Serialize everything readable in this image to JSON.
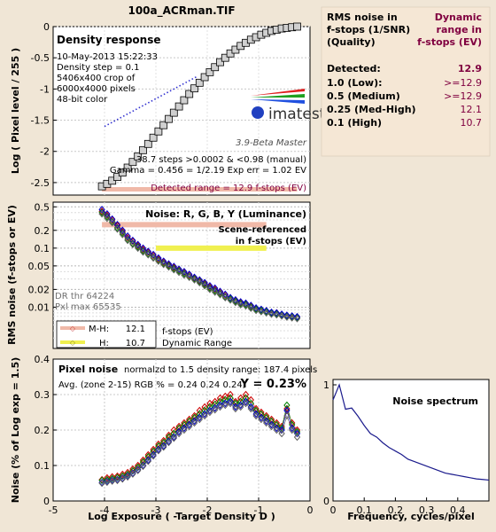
{
  "title": "100a_ACRman.TIF",
  "table": {
    "col1_header": [
      "RMS noise in",
      "f-stops (1/SNR)",
      "(Quality)"
    ],
    "col2_header": [
      "Dynamic",
      "range in",
      "f-stops (EV)"
    ],
    "rows": [
      {
        "label": "Detected:",
        "value": "12.9"
      },
      {
        "label": "1.0   (Low):",
        "value": ">=12.9"
      },
      {
        "label": "0.5   (Medium)",
        "value": ">=12.9"
      },
      {
        "label": "0.25 (Med-High)",
        "value": "12.1"
      },
      {
        "label": "0.1   (High)",
        "value": "10.7"
      }
    ]
  },
  "colors": {
    "background": "#f0e6d6",
    "panel": "#ffffff",
    "title": "#800040",
    "red": "#cc0000",
    "green": "#008000",
    "blue": "#0000cc",
    "gray": "#606060",
    "pink_band": "#f0b9a8",
    "yellow_band": "#f0f050",
    "spectrum_line": "#1a1a8c",
    "blue_dots": "#3030d0"
  },
  "chart_data": [
    {
      "type": "line",
      "name": "density-response",
      "title": "Density response",
      "info": [
        "10-May-2013 15:22:33",
        "Density step = 0.1",
        "5406x400 crop of",
        "6000x4000 pixels",
        "48-bit color"
      ],
      "logo": "imatest",
      "version": "3.9-Beta  Master",
      "notes": [
        "38.7 steps >0.0002 & <0.98 (manual)",
        "Gamma = 0.456 = 1/2.19  Exp err = 1.02 EV"
      ],
      "detected_label": "Detected range = 12.9 f-stops (EV)",
      "ylabel": "Log ( Pixel level / 255 )",
      "xlim": [
        -5,
        0
      ],
      "ylim": [
        -2.7,
        0
      ],
      "yticks": [
        -2.5,
        -2,
        -1.5,
        -1,
        -0.5,
        0
      ],
      "ytick_labels": [
        "-2.5",
        "-2",
        "-1.5",
        "-1",
        "-0.5",
        "0"
      ],
      "x": [
        -4.05,
        -3.95,
        -3.85,
        -3.75,
        -3.65,
        -3.55,
        -3.45,
        -3.35,
        -3.25,
        -3.15,
        -3.05,
        -2.95,
        -2.85,
        -2.75,
        -2.65,
        -2.55,
        -2.45,
        -2.35,
        -2.25,
        -2.15,
        -2.05,
        -1.95,
        -1.85,
        -1.75,
        -1.65,
        -1.55,
        -1.45,
        -1.35,
        -1.25,
        -1.15,
        -1.05,
        -0.95,
        -0.85,
        -0.75,
        -0.65,
        -0.55,
        -0.45,
        -0.35,
        -0.25
      ],
      "y": [
        -2.56,
        -2.52,
        -2.47,
        -2.41,
        -2.34,
        -2.26,
        -2.17,
        -2.08,
        -1.98,
        -1.88,
        -1.78,
        -1.68,
        -1.58,
        -1.48,
        -1.38,
        -1.28,
        -1.18,
        -1.08,
        -0.99,
        -0.9,
        -0.81,
        -0.73,
        -0.65,
        -0.57,
        -0.5,
        -0.43,
        -0.37,
        -0.31,
        -0.26,
        -0.21,
        -0.17,
        -0.13,
        -0.1,
        -0.07,
        -0.05,
        -0.03,
        -0.02,
        -0.01,
        0.0
      ],
      "fit_line": {
        "x": [
          -4.0,
          -2.2
        ],
        "y": [
          -1.6,
          -0.8
        ]
      },
      "detected_range_x": [
        -4.05,
        -0.25
      ]
    },
    {
      "type": "scatter",
      "name": "noise-rgby",
      "title": "Noise: R, G, B, Y (Luminance)",
      "note": [
        "Scene-referenced",
        "in f-stops (EV)"
      ],
      "ylabel": "RMS noise (f-stops or EV)",
      "ylog": true,
      "xlim": [
        -5,
        0
      ],
      "ylim": [
        0.002,
        0.6
      ],
      "ytick_labels": [
        "0.5",
        "0.2",
        "0.1",
        "0.05",
        "0.02",
        "0.01"
      ],
      "ytick_values": [
        0.5,
        0.2,
        0.1,
        0.05,
        0.02,
        0.01
      ],
      "dr_text": [
        "DR thr 64224",
        "Pxl max 65535"
      ],
      "legend": [
        {
          "label": "M-H:",
          "value": "12.1"
        },
        {
          "label": "H:",
          "value": "10.7"
        }
      ],
      "legend_text": [
        "f-stops (EV)",
        "Dynamic Range"
      ],
      "bands": [
        {
          "y": 0.25,
          "x": [
            -4.05,
            -0.85
          ],
          "level": "M-H"
        },
        {
          "y": 0.1,
          "x": [
            -3.0,
            -0.85
          ],
          "level": "H"
        }
      ],
      "x": [
        -4.05,
        -3.95,
        -3.85,
        -3.75,
        -3.65,
        -3.55,
        -3.45,
        -3.35,
        -3.25,
        -3.15,
        -3.05,
        -2.95,
        -2.85,
        -2.75,
        -2.65,
        -2.55,
        -2.45,
        -2.35,
        -2.25,
        -2.15,
        -2.05,
        -1.95,
        -1.85,
        -1.75,
        -1.65,
        -1.55,
        -1.45,
        -1.35,
        -1.25,
        -1.15,
        -1.05,
        -0.95,
        -0.85,
        -0.75,
        -0.65,
        -0.55,
        -0.45,
        -0.35,
        -0.25
      ],
      "series": [
        {
          "name": "R",
          "values": [
            0.42,
            0.36,
            0.3,
            0.24,
            0.19,
            0.15,
            0.13,
            0.11,
            0.095,
            0.085,
            0.075,
            0.065,
            0.058,
            0.052,
            0.047,
            0.043,
            0.039,
            0.035,
            0.031,
            0.028,
            0.025,
            0.022,
            0.02,
            0.018,
            0.016,
            0.014,
            0.013,
            0.012,
            0.0115,
            0.0105,
            0.0095,
            0.009,
            0.0085,
            0.008,
            0.008,
            0.0075,
            0.0072,
            0.007,
            0.0068
          ]
        },
        {
          "name": "G",
          "values": [
            0.4,
            0.34,
            0.28,
            0.22,
            0.18,
            0.14,
            0.12,
            0.105,
            0.09,
            0.08,
            0.07,
            0.062,
            0.055,
            0.05,
            0.045,
            0.041,
            0.037,
            0.033,
            0.03,
            0.027,
            0.024,
            0.021,
            0.019,
            0.017,
            0.015,
            0.0138,
            0.0125,
            0.0115,
            0.011,
            0.01,
            0.0092,
            0.0088,
            0.0084,
            0.0079,
            0.0077,
            0.0074,
            0.007,
            0.0068,
            0.0066
          ]
        },
        {
          "name": "B",
          "values": [
            0.45,
            0.38,
            0.31,
            0.25,
            0.2,
            0.16,
            0.135,
            0.115,
            0.1,
            0.088,
            0.078,
            0.068,
            0.06,
            0.054,
            0.049,
            0.044,
            0.04,
            0.036,
            0.032,
            0.029,
            0.026,
            0.023,
            0.021,
            0.0185,
            0.0165,
            0.0145,
            0.0133,
            0.0123,
            0.0117,
            0.0107,
            0.0097,
            0.0092,
            0.0087,
            0.0082,
            0.008,
            0.0076,
            0.0073,
            0.0071,
            0.0069
          ]
        },
        {
          "name": "Y",
          "values": [
            0.38,
            0.32,
            0.27,
            0.21,
            0.17,
            0.135,
            0.115,
            0.1,
            0.086,
            0.077,
            0.068,
            0.06,
            0.053,
            0.048,
            0.043,
            0.039,
            0.035,
            0.032,
            0.029,
            0.026,
            0.023,
            0.02,
            0.018,
            0.0163,
            0.0145,
            0.0132,
            0.012,
            0.011,
            0.0105,
            0.0096,
            0.0088,
            0.0084,
            0.008,
            0.0076,
            0.0074,
            0.0071,
            0.0068,
            0.0066,
            0.0064
          ]
        }
      ]
    },
    {
      "type": "scatter",
      "name": "pixel-noise",
      "title": "Pixel noise",
      "subtitle": "normalzd to 1.5 density range: 187.4 pixels",
      "avg_text": "Avg. (zone 2-15) RGB % = 0.24  0.24  0.24;",
      "y_text": "Y = 0.23%",
      "ylabel": "Noise (% of Log exp = 1.5)",
      "xlabel": "Log Exposure ( -Target Density D )",
      "xlim": [
        -5,
        0
      ],
      "ylim": [
        0,
        0.4
      ],
      "xticks": [
        -5,
        -4,
        -3,
        -2,
        -1,
        0
      ],
      "xtick_labels": [
        "-5",
        "-4",
        "-3",
        "-2",
        "-1",
        "0"
      ],
      "yticks": [
        0,
        0.1,
        0.2,
        0.3,
        0.4
      ],
      "ytick_labels": [
        "0",
        "0.1",
        "0.2",
        "0.3",
        "0.4"
      ],
      "x": [
        -4.05,
        -3.95,
        -3.85,
        -3.75,
        -3.65,
        -3.55,
        -3.45,
        -3.35,
        -3.25,
        -3.15,
        -3.05,
        -2.95,
        -2.85,
        -2.75,
        -2.65,
        -2.55,
        -2.45,
        -2.35,
        -2.25,
        -2.15,
        -2.05,
        -1.95,
        -1.85,
        -1.75,
        -1.65,
        -1.55,
        -1.45,
        -1.35,
        -1.25,
        -1.15,
        -1.05,
        -0.95,
        -0.85,
        -0.75,
        -0.65,
        -0.55,
        -0.45,
        -0.35,
        -0.25
      ],
      "series": [
        {
          "name": "R",
          "values": [
            0.06,
            0.065,
            0.068,
            0.07,
            0.075,
            0.08,
            0.09,
            0.1,
            0.115,
            0.13,
            0.145,
            0.16,
            0.17,
            0.185,
            0.2,
            0.21,
            0.22,
            0.23,
            0.24,
            0.255,
            0.265,
            0.275,
            0.28,
            0.29,
            0.295,
            0.3,
            0.28,
            0.29,
            0.3,
            0.285,
            0.26,
            0.25,
            0.24,
            0.23,
            0.22,
            0.21,
            0.26,
            0.22,
            0.2
          ]
        },
        {
          "name": "G",
          "values": [
            0.058,
            0.06,
            0.063,
            0.066,
            0.07,
            0.075,
            0.085,
            0.095,
            0.11,
            0.125,
            0.14,
            0.155,
            0.165,
            0.18,
            0.19,
            0.205,
            0.215,
            0.225,
            0.235,
            0.245,
            0.255,
            0.265,
            0.272,
            0.28,
            0.285,
            0.29,
            0.275,
            0.28,
            0.29,
            0.275,
            0.255,
            0.245,
            0.235,
            0.225,
            0.215,
            0.205,
            0.27,
            0.215,
            0.195
          ]
        },
        {
          "name": "B",
          "values": [
            0.052,
            0.055,
            0.058,
            0.06,
            0.064,
            0.07,
            0.078,
            0.088,
            0.1,
            0.115,
            0.13,
            0.145,
            0.155,
            0.168,
            0.18,
            0.195,
            0.205,
            0.215,
            0.225,
            0.235,
            0.245,
            0.255,
            0.262,
            0.27,
            0.275,
            0.28,
            0.265,
            0.27,
            0.28,
            0.265,
            0.245,
            0.235,
            0.225,
            0.215,
            0.205,
            0.2,
            0.255,
            0.205,
            0.19
          ]
        },
        {
          "name": "Y",
          "values": [
            0.05,
            0.053,
            0.056,
            0.058,
            0.062,
            0.068,
            0.076,
            0.086,
            0.098,
            0.112,
            0.127,
            0.142,
            0.152,
            0.165,
            0.177,
            0.19,
            0.2,
            0.21,
            0.22,
            0.23,
            0.24,
            0.25,
            0.257,
            0.265,
            0.27,
            0.275,
            0.26,
            0.265,
            0.275,
            0.26,
            0.24,
            0.23,
            0.22,
            0.21,
            0.2,
            0.19,
            0.24,
            0.2,
            0.18
          ]
        }
      ]
    },
    {
      "type": "line",
      "name": "noise-spectrum",
      "title": "Noise spectrum",
      "xlabel": "Frequency, cycles/pixel",
      "xlim": [
        0,
        0.5
      ],
      "ylim": [
        0,
        1
      ],
      "xticks": [
        0,
        0.1,
        0.2,
        0.3,
        0.4
      ],
      "xtick_labels": [
        "0",
        "0.1",
        "0.2",
        "0.3",
        "0.4"
      ],
      "yticks": [
        0,
        1
      ],
      "ytick_labels": [
        "0",
        "1"
      ],
      "x": [
        0.0,
        0.02,
        0.04,
        0.06,
        0.08,
        0.1,
        0.12,
        0.14,
        0.16,
        0.18,
        0.2,
        0.22,
        0.24,
        0.26,
        0.28,
        0.3,
        0.32,
        0.34,
        0.36,
        0.38,
        0.4,
        0.42,
        0.44,
        0.46,
        0.48,
        0.5
      ],
      "values": [
        0.87,
        1.0,
        0.79,
        0.8,
        0.73,
        0.65,
        0.58,
        0.55,
        0.5,
        0.46,
        0.43,
        0.4,
        0.36,
        0.34,
        0.32,
        0.3,
        0.28,
        0.26,
        0.24,
        0.23,
        0.22,
        0.21,
        0.2,
        0.19,
        0.185,
        0.18
      ]
    }
  ]
}
